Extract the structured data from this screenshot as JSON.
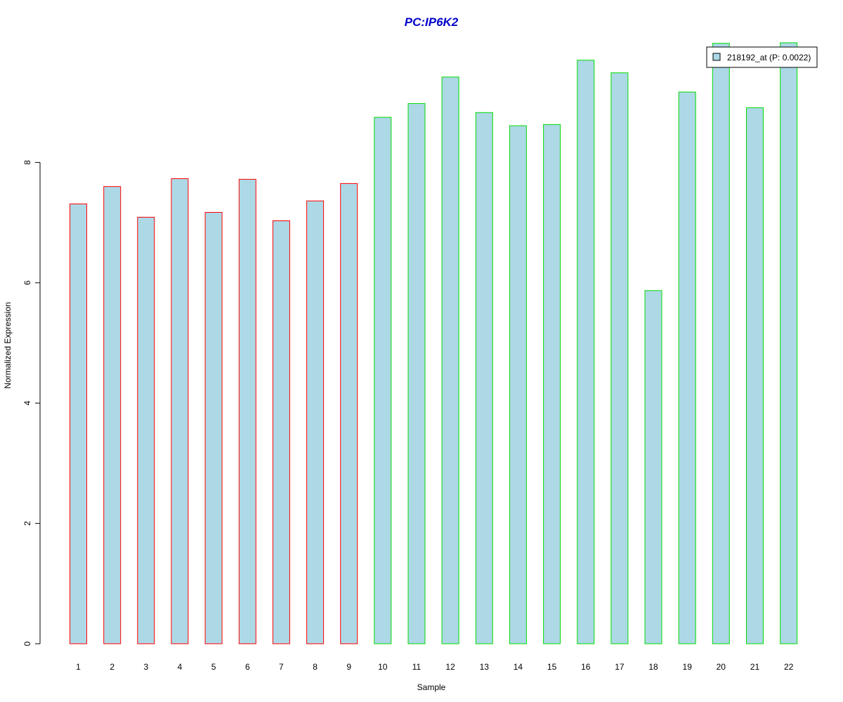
{
  "chart_data": {
    "type": "bar",
    "title": "PC:IP6K2",
    "xlabel": "Sample",
    "ylabel": "Normalized Expression",
    "categories": [
      "1",
      "2",
      "3",
      "4",
      "5",
      "6",
      "7",
      "8",
      "9",
      "10",
      "11",
      "12",
      "13",
      "14",
      "15",
      "16",
      "17",
      "18",
      "19",
      "20",
      "21",
      "22"
    ],
    "series": [
      {
        "name": "218192_at (P: 0.0022)",
        "values": [
          7.31,
          7.6,
          7.09,
          7.73,
          7.17,
          7.72,
          7.03,
          7.36,
          7.65,
          8.75,
          8.98,
          9.42,
          8.83,
          8.61,
          8.63,
          9.7,
          9.49,
          5.87,
          9.17,
          9.98,
          8.91,
          9.99
        ]
      }
    ],
    "group_colors": [
      "#ff0000",
      "#ff0000",
      "#ff0000",
      "#ff0000",
      "#ff0000",
      "#ff0000",
      "#ff0000",
      "#ff0000",
      "#ff0000",
      "#00dd00",
      "#00dd00",
      "#00dd00",
      "#00dd00",
      "#00dd00",
      "#00dd00",
      "#00dd00",
      "#00dd00",
      "#00dd00",
      "#00dd00",
      "#00dd00",
      "#00dd00",
      "#00dd00"
    ],
    "fill_color": "#add8e6",
    "title_color": "#0000cc",
    "yticks": [
      0,
      2,
      4,
      6,
      8
    ],
    "ylim": [
      0,
      10
    ],
    "grid": false,
    "legend_position": "top-right"
  }
}
